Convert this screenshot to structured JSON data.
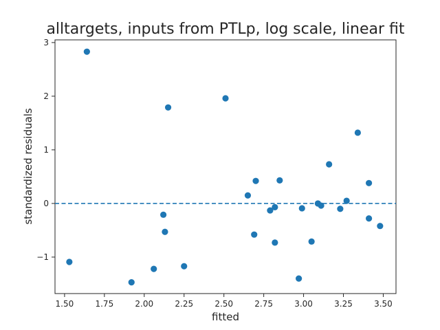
{
  "chart_data": {
    "type": "scatter",
    "title": "alltargets, inputs from PTLp, log scale, linear fit",
    "xlabel": "fitted",
    "ylabel": "standardized residuals",
    "xlim": [
      1.44,
      3.58
    ],
    "ylim": [
      -1.68,
      3.05
    ],
    "xticks": [
      1.5,
      1.75,
      2.0,
      2.25,
      2.5,
      2.75,
      3.0,
      3.25,
      3.5
    ],
    "xtick_labels": [
      "1.50",
      "1.75",
      "2.00",
      "2.25",
      "2.50",
      "2.75",
      "3.00",
      "3.25",
      "3.50"
    ],
    "yticks": [
      -1,
      0,
      1,
      2,
      3
    ],
    "ytick_labels": [
      "−1",
      "0",
      "1",
      "2",
      "3"
    ],
    "grid": false,
    "reference_line": {
      "y": 0,
      "style": "dashed"
    },
    "color": "#1f77b4",
    "series": [
      {
        "points": [
          {
            "x": 1.53,
            "y": -1.09
          },
          {
            "x": 1.64,
            "y": 2.83
          },
          {
            "x": 1.92,
            "y": -1.47
          },
          {
            "x": 2.06,
            "y": -1.22
          },
          {
            "x": 2.12,
            "y": -0.21
          },
          {
            "x": 2.13,
            "y": -0.53
          },
          {
            "x": 2.15,
            "y": 1.79
          },
          {
            "x": 2.25,
            "y": -1.17
          },
          {
            "x": 2.51,
            "y": 1.96
          },
          {
            "x": 2.65,
            "y": 0.15
          },
          {
            "x": 2.69,
            "y": -0.58
          },
          {
            "x": 2.7,
            "y": 0.42
          },
          {
            "x": 2.79,
            "y": -0.13
          },
          {
            "x": 2.82,
            "y": -0.07
          },
          {
            "x": 2.82,
            "y": -0.73
          },
          {
            "x": 2.85,
            "y": 0.43
          },
          {
            "x": 2.97,
            "y": -1.4
          },
          {
            "x": 2.99,
            "y": -0.09
          },
          {
            "x": 3.05,
            "y": -0.71
          },
          {
            "x": 3.09,
            "y": 0.0
          },
          {
            "x": 3.11,
            "y": -0.04
          },
          {
            "x": 3.16,
            "y": 0.73
          },
          {
            "x": 3.23,
            "y": -0.1
          },
          {
            "x": 3.27,
            "y": 0.05
          },
          {
            "x": 3.34,
            "y": 1.32
          },
          {
            "x": 3.41,
            "y": 0.38
          },
          {
            "x": 3.41,
            "y": -0.28
          },
          {
            "x": 3.48,
            "y": -0.42
          }
        ]
      }
    ]
  }
}
